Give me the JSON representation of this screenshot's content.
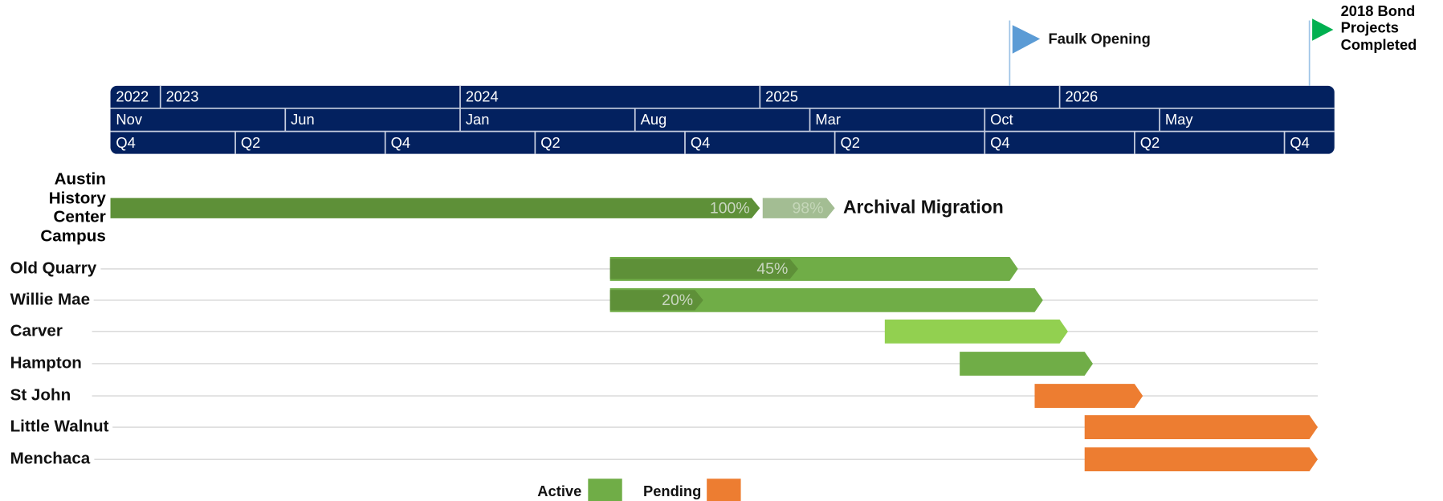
{
  "chart_data": {
    "type": "gantt",
    "xlim": [
      "2022-11",
      "2026-12"
    ],
    "year_ticks": [
      {
        "value": "2022-11",
        "label": "2022"
      },
      {
        "value": "2023-01",
        "label": "2023"
      },
      {
        "value": "2024-01",
        "label": "2024"
      },
      {
        "value": "2025-01",
        "label": "2025"
      },
      {
        "value": "2026-01",
        "label": "2026"
      }
    ],
    "month_ticks": [
      {
        "value": "2022-11",
        "label": "Nov"
      },
      {
        "value": "2023-06",
        "label": "Jun"
      },
      {
        "value": "2024-01",
        "label": "Jan"
      },
      {
        "value": "2024-08",
        "label": "Aug"
      },
      {
        "value": "2025-03",
        "label": "Mar"
      },
      {
        "value": "2025-10",
        "label": "Oct"
      },
      {
        "value": "2026-05",
        "label": "May"
      }
    ],
    "quarter_ticks": [
      {
        "value": "2022-11",
        "label": "Q4"
      },
      {
        "value": "2023-04",
        "label": "Q2"
      },
      {
        "value": "2023-10",
        "label": "Q4"
      },
      {
        "value": "2024-04",
        "label": "Q2"
      },
      {
        "value": "2024-10",
        "label": "Q4"
      },
      {
        "value": "2025-04",
        "label": "Q2"
      },
      {
        "value": "2025-10",
        "label": "Q4"
      },
      {
        "value": "2026-04",
        "label": "Q2"
      },
      {
        "value": "2026-10",
        "label": "Q4"
      }
    ],
    "milestones": [
      {
        "name": "Faulk Opening",
        "date": "2025-11",
        "color": "#5b9bd5"
      },
      {
        "name": "2018 Bond Projects Completed",
        "date": "2026-11",
        "color": "#00b050"
      }
    ],
    "rows": [
      {
        "name": "Austin History Center Campus",
        "bars": [
          {
            "start": "2022-11",
            "end": "2025-01",
            "color": "#5e9038",
            "progress": 100,
            "progress_label": "100%"
          },
          {
            "start": "2025-01",
            "end": "2025-04",
            "color": "#a3bd93",
            "progress": 98,
            "progress_label": "98%",
            "label": "Archival Migration"
          }
        ]
      },
      {
        "name": "Old Quarry",
        "bars": [
          {
            "start": "2024-07",
            "end": "2025-11",
            "color": "#70ad47",
            "progress": 45,
            "progress_label": "45%"
          }
        ]
      },
      {
        "name": "Willie Mae",
        "bars": [
          {
            "start": "2024-07",
            "end": "2025-12",
            "color": "#70ad47",
            "progress": 20,
            "progress_label": "20%"
          }
        ]
      },
      {
        "name": "Carver",
        "bars": [
          {
            "start": "2025-06",
            "end": "2026-01",
            "color": "#92d050"
          }
        ]
      },
      {
        "name": "Hampton",
        "bars": [
          {
            "start": "2025-09",
            "end": "2026-02",
            "color": "#70ad47"
          }
        ]
      },
      {
        "name": "St John",
        "bars": [
          {
            "start": "2025-12",
            "end": "2026-04",
            "color": "#ed7d31"
          }
        ]
      },
      {
        "name": "Little Walnut",
        "bars": [
          {
            "start": "2026-02",
            "end": "2026-11",
            "color": "#ed7d31"
          }
        ]
      },
      {
        "name": "Menchaca",
        "bars": [
          {
            "start": "2026-02",
            "end": "2026-11",
            "color": "#ed7d31"
          }
        ]
      }
    ],
    "legend": [
      {
        "name": "Active",
        "color": "#70ad47"
      },
      {
        "name": "Pending",
        "color": "#ed7d31"
      }
    ]
  }
}
